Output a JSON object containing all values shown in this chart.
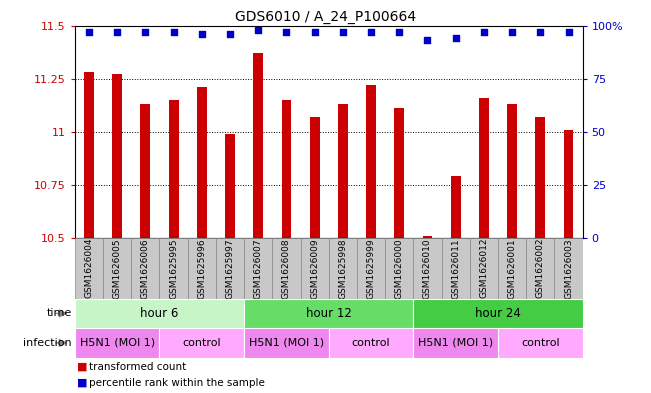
{
  "title": "GDS6010 / A_24_P100664",
  "samples": [
    "GSM1626004",
    "GSM1626005",
    "GSM1626006",
    "GSM1625995",
    "GSM1625996",
    "GSM1625997",
    "GSM1626007",
    "GSM1626008",
    "GSM1626009",
    "GSM1625998",
    "GSM1625999",
    "GSM1626000",
    "GSM1626010",
    "GSM1626011",
    "GSM1626012",
    "GSM1626001",
    "GSM1626002",
    "GSM1626003"
  ],
  "bar_values": [
    11.28,
    11.27,
    11.13,
    11.15,
    11.21,
    10.99,
    11.37,
    11.15,
    11.07,
    11.13,
    11.22,
    11.11,
    10.51,
    10.79,
    11.16,
    11.13,
    11.07,
    11.01
  ],
  "dot_values": [
    97,
    97,
    97,
    97,
    96,
    96,
    98,
    97,
    97,
    97,
    97,
    97,
    93,
    94,
    97,
    97,
    97,
    97
  ],
  "ylim_left": [
    10.5,
    11.5
  ],
  "ylim_right": [
    0,
    100
  ],
  "yticks_left": [
    10.5,
    10.75,
    11.0,
    11.25,
    11.5
  ],
  "yticks_right": [
    0,
    25,
    50,
    75,
    100
  ],
  "ytick_labels_left": [
    "10.5",
    "10.75",
    "11",
    "11.25",
    "11.5"
  ],
  "ytick_labels_right": [
    "0",
    "25",
    "50",
    "75",
    "100%"
  ],
  "bar_color": "#cc0000",
  "dot_color": "#0000cc",
  "bar_bottom": 10.5,
  "bar_width": 0.35,
  "groups": [
    {
      "label": "hour 6",
      "start": 0,
      "end": 6,
      "color": "#c8f5c8"
    },
    {
      "label": "hour 12",
      "start": 6,
      "end": 12,
      "color": "#66dd66"
    },
    {
      "label": "hour 24",
      "start": 12,
      "end": 18,
      "color": "#44cc44"
    }
  ],
  "infections": [
    {
      "label": "H5N1 (MOI 1)",
      "start": 0,
      "end": 3,
      "color": "#ee88ee"
    },
    {
      "label": "control",
      "start": 3,
      "end": 6,
      "color": "#ffaaff"
    },
    {
      "label": "H5N1 (MOI 1)",
      "start": 6,
      "end": 9,
      "color": "#ee88ee"
    },
    {
      "label": "control",
      "start": 9,
      "end": 12,
      "color": "#ffaaff"
    },
    {
      "label": "H5N1 (MOI 1)",
      "start": 12,
      "end": 15,
      "color": "#ee88ee"
    },
    {
      "label": "control",
      "start": 15,
      "end": 18,
      "color": "#ffaaff"
    }
  ],
  "legend_items": [
    {
      "label": "transformed count",
      "color": "#cc0000"
    },
    {
      "label": "percentile rank within the sample",
      "color": "#0000cc"
    }
  ],
  "time_label": "time",
  "infection_label": "infection",
  "xlabels_bg": "#c8c8c8",
  "xlabels_border": "#888888"
}
